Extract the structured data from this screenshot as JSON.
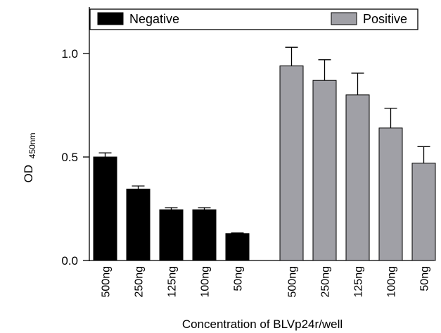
{
  "chart_data": {
    "type": "bar",
    "title": "",
    "xlabel": "Concentration of BLVp24r/well",
    "ylabel": {
      "main": "OD",
      "subscript": "450nm"
    },
    "ylim": [
      0,
      1.2
    ],
    "yticks": [
      "0.0",
      "0.5",
      "1.0"
    ],
    "ytick_values": [
      0.0,
      0.5,
      1.0
    ],
    "grid": false,
    "legend_position": "top",
    "series": [
      {
        "name": "Negative",
        "color": "#000000",
        "categories": [
          "500ng",
          "250ng",
          "125ng",
          "100ng",
          "50ng"
        ],
        "values": [
          0.5,
          0.345,
          0.245,
          0.245,
          0.13
        ],
        "errors": [
          0.02,
          0.015,
          0.01,
          0.01,
          0.003
        ]
      },
      {
        "name": "Positive",
        "color": "#a0a0a6",
        "categories": [
          "500ng",
          "250ng",
          "125ng",
          "100ng",
          "50ng"
        ],
        "values": [
          0.94,
          0.87,
          0.8,
          0.64,
          0.47
        ],
        "errors": [
          0.09,
          0.1,
          0.105,
          0.095,
          0.08
        ]
      }
    ]
  }
}
